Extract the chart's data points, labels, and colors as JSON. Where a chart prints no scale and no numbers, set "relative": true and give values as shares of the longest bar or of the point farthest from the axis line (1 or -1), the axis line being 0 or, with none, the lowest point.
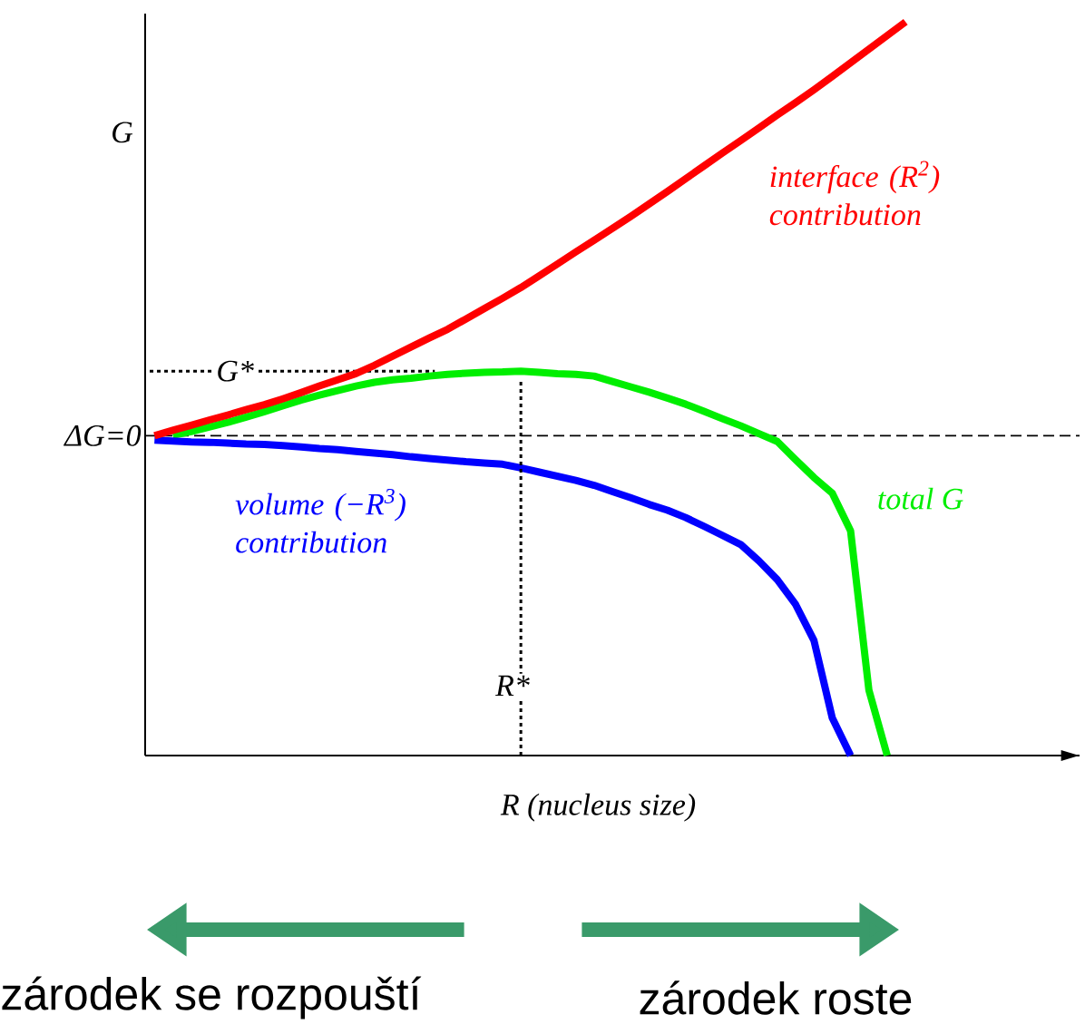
{
  "chart_data": {
    "type": "line",
    "relative": true,
    "tick_labels": false,
    "ylabel": "G",
    "xlabel": "R (nucleus size)",
    "categories": [
      null,
      null,
      null,
      null,
      null,
      null,
      null,
      null,
      null,
      null,
      null,
      null,
      null,
      null,
      null,
      null,
      null,
      null,
      null,
      null,
      null,
      null,
      null,
      null,
      null,
      null,
      null,
      null,
      null,
      null,
      null,
      null,
      null,
      null,
      null,
      null,
      null,
      null,
      null,
      null,
      null,
      null
    ],
    "series": [
      {
        "name": "interface (R$^{2}$) contribution",
        "color": "#ff0000",
        "values": [
          0,
          0.013,
          0.025,
          0.038,
          0.05,
          0.063,
          0.075,
          0.089,
          0.104,
          0.12,
          0.135,
          0.15,
          0.17,
          0.192,
          0.214,
          0.236,
          0.257,
          0.282,
          0.307,
          0.332,
          0.358,
          0.386,
          0.415,
          0.444,
          0.472,
          0.501,
          0.53,
          0.56,
          0.59,
          0.621,
          0.652,
          0.683,
          0.713,
          0.744,
          0.775,
          0.805,
          0.836,
          0.868,
          0.901,
          0.934,
          0.967,
          1
        ]
      },
      {
        "name": "volume (−R$^{3}$) contribution",
        "color": "#0000ff",
        "values": [
          -0.011,
          -0.013,
          -0.015,
          -0.016,
          -0.018,
          -0.02,
          -0.021,
          -0.024,
          -0.027,
          -0.031,
          -0.034,
          -0.038,
          -0.042,
          -0.046,
          -0.051,
          -0.055,
          -0.059,
          -0.063,
          -0.066,
          -0.069,
          -0.078,
          -0.088,
          -0.098,
          -0.108,
          -0.12,
          -0.135,
          -0.15,
          -0.166,
          -0.18,
          -0.198,
          -0.219,
          -0.241,
          -0.263,
          -0.303,
          -0.348,
          -0.408,
          -0.495,
          -0.682,
          -0.773,
          null,
          null,
          null
        ]
      },
      {
        "name": "total G",
        "color": "#00ee00",
        "values": [
          null,
          0.001,
          0.01,
          0.021,
          0.032,
          0.045,
          0.058,
          0.072,
          0.086,
          0.098,
          0.109,
          0.12,
          0.129,
          0.135,
          0.139,
          0.144,
          0.148,
          0.151,
          0.153,
          0.154,
          0.156,
          0.153,
          0.15,
          0.148,
          0.144,
          0.131,
          0.118,
          0.105,
          0.091,
          0.076,
          0.059,
          0.041,
          0.024,
          0.005,
          -0.014,
          -0.058,
          -0.101,
          -0.139,
          -0.23,
          -0.615,
          -0.773,
          null
        ]
      }
    ],
    "ref_lines": [
      {
        "axis": "y",
        "value": 0,
        "label": "ΔG=0",
        "line_style": "dashed"
      },
      {
        "axis": "y",
        "value": 0.156,
        "label": "G*",
        "line_style": "dotted"
      }
    ],
    "annotations": [
      "zárodek se rozpouští",
      "zárodek roste",
      "R*"
    ]
  }
}
